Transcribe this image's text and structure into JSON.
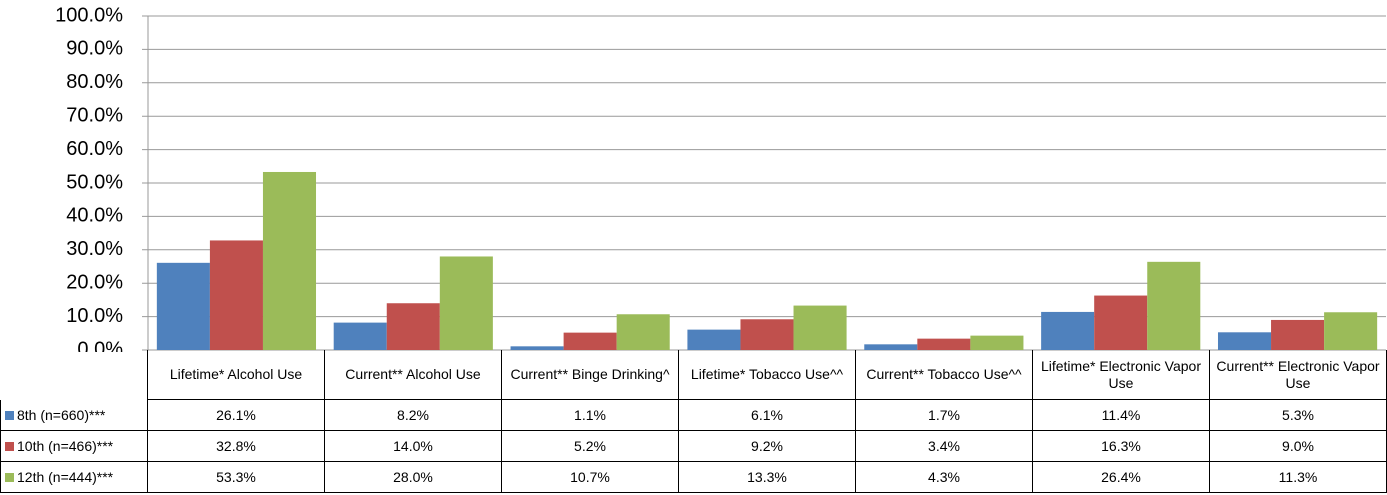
{
  "chart_data": {
    "type": "bar",
    "categories": [
      "Lifetime* Alcohol Use",
      "Current** Alcohol Use",
      "Current** Binge Drinking^",
      "Lifetime* Tobacco Use^^",
      "Current** Tobacco Use^^",
      "Lifetime* Electronic Vapor Use",
      "Current** Electronic Vapor Use"
    ],
    "series": [
      {
        "name": "8th (n=660)***",
        "color": "#4f81bd",
        "values": [
          26.1,
          8.2,
          1.1,
          6.1,
          1.7,
          11.4,
          5.3
        ],
        "value_labels": [
          "26.1%",
          "8.2%",
          "1.1%",
          "6.1%",
          "1.7%",
          "11.4%",
          "5.3%"
        ]
      },
      {
        "name": "10th (n=466)***",
        "color": "#c0504d",
        "values": [
          32.8,
          14.0,
          5.2,
          9.2,
          3.4,
          16.3,
          9.0
        ],
        "value_labels": [
          "32.8%",
          "14.0%",
          "5.2%",
          "9.2%",
          "3.4%",
          "16.3%",
          "9.0%"
        ]
      },
      {
        "name": "12th (n=444)***",
        "color": "#9bbb59",
        "values": [
          53.3,
          28.0,
          10.7,
          13.3,
          4.3,
          26.4,
          11.3
        ],
        "value_labels": [
          "53.3%",
          "28.0%",
          "10.7%",
          "13.3%",
          "4.3%",
          "26.4%",
          "11.3%"
        ]
      }
    ],
    "ylim": [
      0,
      100
    ],
    "yticks": [
      {
        "value": 0,
        "label": "0.0%"
      },
      {
        "value": 10,
        "label": "10.0%"
      },
      {
        "value": 20,
        "label": "20.0%"
      },
      {
        "value": 30,
        "label": "30.0%"
      },
      {
        "value": 40,
        "label": "40.0%"
      },
      {
        "value": 50,
        "label": "50.0%"
      },
      {
        "value": 60,
        "label": "60.0%"
      },
      {
        "value": 70,
        "label": "70.0%"
      },
      {
        "value": 80,
        "label": "80.0%"
      },
      {
        "value": 90,
        "label": "90.0%"
      },
      {
        "value": 100,
        "label": "100.0%"
      }
    ],
    "grid": true
  }
}
